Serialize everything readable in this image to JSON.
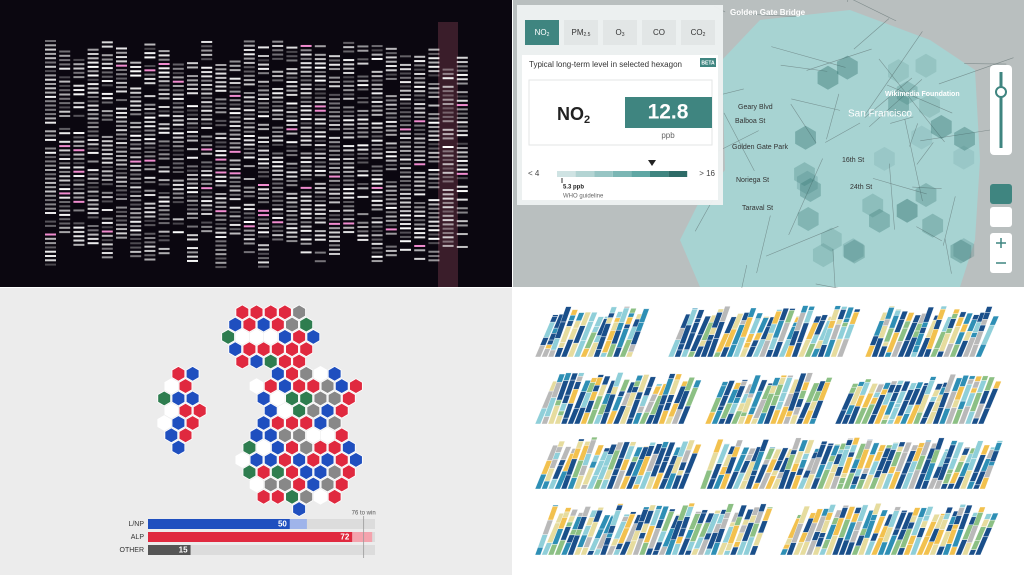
{
  "map_panel": {
    "tabs": [
      {
        "main": "NO",
        "sub": "2"
      },
      {
        "main": "PM",
        "sub": "2.5"
      },
      {
        "main": "O",
        "sub": "3"
      },
      {
        "main": "CO",
        "sub": ""
      },
      {
        "main": "CO",
        "sub": "2"
      }
    ],
    "heading": "Typical long-term level in selected hexagon",
    "badge": "BETA",
    "pollutant": {
      "main": "NO",
      "sub": "2"
    },
    "reading": "12.8",
    "unit": "ppb",
    "scale_low": "< 4",
    "scale_high": "> 16",
    "guideline_value": "5.3 ppb",
    "guideline_label": "WHO guideline",
    "places": [
      "Golden Gate Bridge",
      "Wikimedia Foundation",
      "San Francisco",
      "Geary Blvd",
      "Balboa St",
      "Golden Gate Park",
      "Noriega St",
      "Taraval St",
      "16th St",
      "24th St"
    ]
  },
  "chart_data": {
    "type": "bar",
    "categories": [
      "L/NP",
      "ALP",
      "OTHER"
    ],
    "series": [
      {
        "colors": [
          "#1f4fbf",
          "#e0293f",
          "#555555"
        ],
        "values": [
          50,
          72,
          15
        ]
      },
      {
        "colors": [
          "#9fb4ea",
          "#f4a3ad",
          "#bbbbbb"
        ],
        "values": [
          6,
          7,
          0
        ]
      }
    ],
    "xlim": [
      0,
      80
    ],
    "win_line": {
      "value": 76,
      "label": "76 to win"
    }
  }
}
